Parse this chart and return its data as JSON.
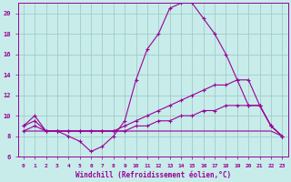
{
  "background_color": "#c8ecea",
  "grid_color": "#a0cccc",
  "line_color": "#990099",
  "xlabel": "Windchill (Refroidissement éolien,°C)",
  "xlim": [
    -0.5,
    23.5
  ],
  "ylim": [
    6,
    21
  ],
  "xticks": [
    0,
    1,
    2,
    3,
    4,
    5,
    6,
    7,
    8,
    9,
    10,
    11,
    12,
    13,
    14,
    15,
    16,
    17,
    18,
    19,
    20,
    21,
    22,
    23
  ],
  "yticks": [
    6,
    8,
    10,
    12,
    14,
    16,
    18,
    20
  ],
  "series": [
    {
      "x": [
        0,
        1,
        2,
        3,
        4,
        5,
        6,
        7,
        8,
        9,
        10,
        11,
        12,
        13,
        14,
        15,
        16,
        17,
        18,
        19,
        20,
        21,
        22,
        23
      ],
      "y": [
        9.0,
        10.0,
        8.5,
        8.5,
        8.0,
        7.5,
        6.5,
        7.0,
        8.0,
        9.5,
        13.5,
        16.5,
        18.0,
        20.5,
        21.0,
        21.0,
        19.5,
        18.0,
        16.0,
        13.5,
        11.0,
        11.0,
        9.0,
        8.0
      ],
      "marker": true
    },
    {
      "x": [
        0,
        1,
        2,
        3,
        4,
        5,
        6,
        7,
        8,
        9,
        10,
        11,
        12,
        13,
        14,
        15,
        16,
        17,
        18,
        19,
        20,
        21,
        22,
        23
      ],
      "y": [
        9.0,
        9.5,
        8.5,
        8.5,
        8.5,
        8.5,
        8.5,
        8.5,
        8.5,
        9.0,
        9.5,
        10.0,
        10.5,
        11.0,
        11.5,
        12.0,
        12.5,
        13.0,
        13.0,
        13.5,
        13.5,
        11.0,
        9.0,
        8.0
      ],
      "marker": true
    },
    {
      "x": [
        0,
        1,
        2,
        3,
        4,
        5,
        6,
        7,
        8,
        9,
        10,
        11,
        12,
        13,
        14,
        15,
        16,
        17,
        18,
        19,
        20,
        21,
        22,
        23
      ],
      "y": [
        8.5,
        9.0,
        8.5,
        8.5,
        8.5,
        8.5,
        8.5,
        8.5,
        8.5,
        8.5,
        9.0,
        9.0,
        9.5,
        9.5,
        10.0,
        10.0,
        10.5,
        10.5,
        11.0,
        11.0,
        11.0,
        11.0,
        9.0,
        8.0
      ],
      "marker": true
    },
    {
      "x": [
        0,
        1,
        2,
        3,
        4,
        5,
        6,
        7,
        8,
        9,
        10,
        11,
        12,
        13,
        14,
        15,
        16,
        17,
        18,
        19,
        20,
        21,
        22,
        23
      ],
      "y": [
        8.5,
        8.5,
        8.5,
        8.5,
        8.5,
        8.5,
        8.5,
        8.5,
        8.5,
        8.5,
        8.5,
        8.5,
        8.5,
        8.5,
        8.5,
        8.5,
        8.5,
        8.5,
        8.5,
        8.5,
        8.5,
        8.5,
        8.5,
        8.0
      ],
      "marker": false
    }
  ],
  "tick_fontsize": 5,
  "xlabel_fontsize": 5.5
}
